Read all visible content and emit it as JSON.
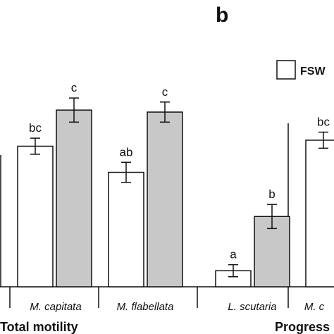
{
  "chart_data": {
    "type": "bar",
    "panel_label": "b",
    "legend": [
      {
        "label": "FSW",
        "color": "#ffffff"
      }
    ],
    "groups": [
      {
        "name": "Total motility",
        "categories": [
          "M. capitata",
          "M. flabellata"
        ]
      },
      {
        "name": "Progress",
        "categories": [
          "L. scutaria",
          "M. c"
        ]
      }
    ],
    "categories": [
      "M. capitata",
      "M. flabellata",
      "L. scutaria",
      "M. c"
    ],
    "series": [
      {
        "color": "#ffffff",
        "values": [
          70,
          57,
          8,
          73
        ],
        "errors": [
          4,
          5,
          3,
          4
        ],
        "labels": [
          "bc",
          "ab",
          "a",
          "bc"
        ]
      },
      {
        "color": "#c8c8c8",
        "values": [
          88,
          87,
          35,
          null
        ],
        "errors": [
          6,
          5,
          6,
          null
        ],
        "labels": [
          "c",
          "c",
          "b",
          null
        ]
      }
    ],
    "ylim": [
      0,
      100
    ],
    "grid": false
  },
  "colors": {
    "outline": "#111111",
    "fill_white": "#ffffff",
    "fill_gray": "#c8c8c8"
  }
}
